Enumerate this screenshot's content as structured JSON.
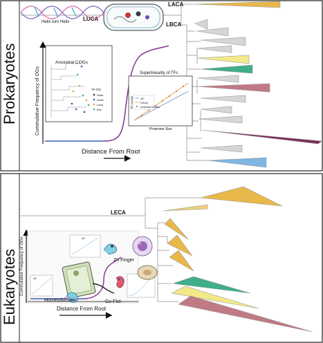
{
  "panels": {
    "prokaryotes": {
      "side_label": "Prokaryotes",
      "nodes": {
        "laca": "LACA",
        "luca": "LUCA",
        "lbca": "LBCA"
      },
      "helix_label": "Helix turn Helix",
      "main_chart": {
        "ylabel": "Cummulative Frequency of OGs",
        "xlabel": "Distance From Root"
      },
      "inset_cogs": {
        "title": "Ancestral COGs",
        "legend_title": "TF-OG",
        "legend": [
          "Dnak",
          "DnaE",
          "LacA",
          "Rec"
        ]
      },
      "inset_tf": {
        "title": "Superlinearity of TFs",
        "ylabel": "TF Count",
        "xlabel": "Proteome Size",
        "legend": [
          "45°",
          "Extant",
          "Ancestral Nodes"
        ]
      }
    },
    "eukaryotes": {
      "side_label": "Eukaryotes",
      "nodes": {
        "leca": "LECA"
      },
      "main_chart": {
        "ylabel": "Cummulative Frequency of OGs",
        "xlabel": "Distance From Root"
      },
      "domains": {
        "zn": "Zn Finger",
        "cu": "Cu-Fist",
        "homeo": "Homeodomain"
      },
      "mini_legend": "45°"
    }
  },
  "colors": {
    "gold": "#e9b84a",
    "gold_light": "#f1cf7a",
    "yellow": "#f2ea86",
    "green": "#3fae8a",
    "rose": "#c07a84",
    "plum": "#7c2d5a",
    "blue": "#7fb6e2",
    "gray": "#d3d3d3",
    "curve_purple": "#8a3a9a",
    "curve_blue": "#3b5bbd"
  }
}
